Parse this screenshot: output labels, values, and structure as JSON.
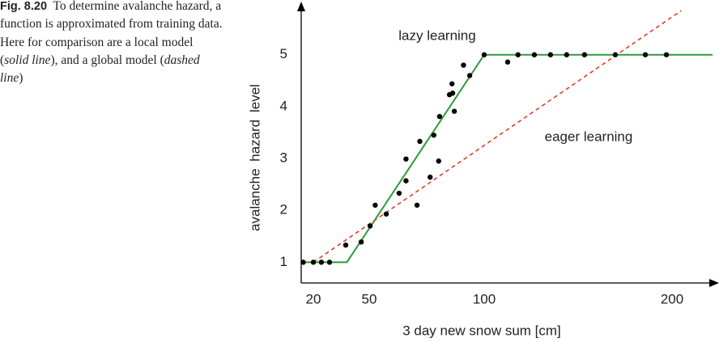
{
  "caption": {
    "label": "Fig. 8.20",
    "parts": [
      "To determine avalanche hazard, a function is approximated from training data. Here for comparison are a local model (",
      "solid line",
      "), and a global model (",
      "dashed line",
      ")"
    ]
  },
  "chart_data": {
    "type": "scatter",
    "xlabel": "3 day new snow sum [cm]",
    "ylabel": "avalanche hazard level",
    "annotations": [
      "lazy learning",
      "eager learning"
    ],
    "xlim": [
      14,
      222
    ],
    "xticks": [
      20,
      50,
      100,
      200
    ],
    "ylim": [
      0.6,
      5.9
    ],
    "yticks": [
      1,
      2,
      3,
      4,
      5
    ],
    "series": [
      {
        "type": "scatter",
        "color": "#000000",
        "x": [
          15,
          20,
          24.3,
          28.7,
          37.4,
          45.7,
          50.4,
          52.6,
          57.4,
          63,
          66,
          66,
          70.8,
          72,
          76.5,
          78.1,
          80.2,
          80.6,
          84.9,
          86.3,
          87,
          86,
          91,
          93.7,
          100,
          112.5,
          118,
          126.7,
          135.3,
          143.9,
          153.4,
          169.8,
          185.8,
          197
        ],
        "values": [
          1,
          1,
          1,
          1,
          1.33,
          1.39,
          1.7,
          2.1,
          1.93,
          2.33,
          2.57,
          2.99,
          2.1,
          3.33,
          2.64,
          3.45,
          2.95,
          3.81,
          4.23,
          4.26,
          3.91,
          4.44,
          4.8,
          4.6,
          5,
          4.86,
          5,
          5,
          5,
          5,
          5,
          5,
          5,
          5
        ]
      },
      {
        "type": "line",
        "color": "#2e9a3a",
        "dash": false,
        "x": [
          14,
          38,
          100,
          222
        ],
        "values": [
          1,
          1,
          5,
          5
        ]
      },
      {
        "type": "line",
        "color": "#d9412c",
        "dash": true,
        "x": [
          20,
          205
        ],
        "values": [
          1,
          5.85
        ]
      }
    ]
  }
}
